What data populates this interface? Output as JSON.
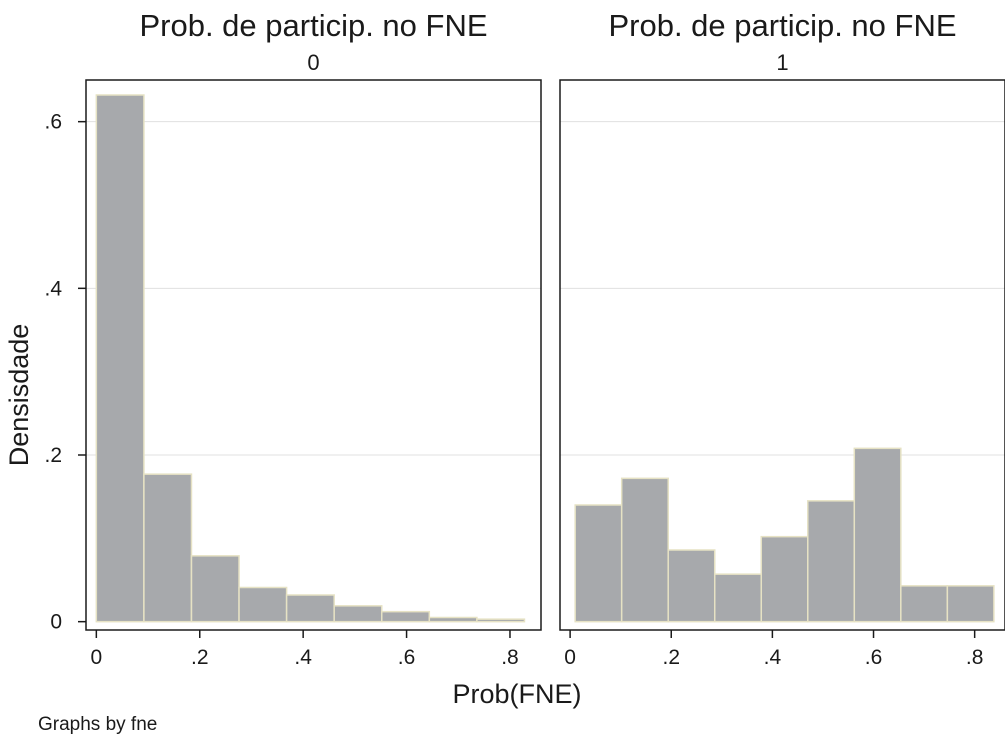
{
  "chart_data": {
    "type": "bar",
    "subtype": "histogram",
    "xlabel": "Prob(FNE)",
    "ylabel": "Densisdade",
    "note": "Graphs by fne",
    "grid": true,
    "legend": "none",
    "colors": {
      "bar_fill": "#a7a9ac",
      "bar_stroke": "#e6e2c4",
      "frame": "#1a1a1a",
      "grid": "#e0e0e0",
      "text": "#1a1a1a"
    },
    "x_ticks": [
      0,
      0.2,
      0.4,
      0.6,
      0.8
    ],
    "x_tick_labels": [
      "0",
      ".2",
      ".4",
      ".6",
      ".8"
    ],
    "y_ticks": [
      0,
      0.2,
      0.4,
      0.6
    ],
    "y_tick_labels": [
      "0",
      ".2",
      ".4",
      ".6"
    ],
    "xlim": [
      -0.02,
      0.86
    ],
    "ylim": [
      -0.01,
      0.65
    ],
    "panels": [
      {
        "title": "Prob. de particip. no FNE",
        "subtitle": "0",
        "bin_edges": [
          0,
          0.092,
          0.184,
          0.276,
          0.368,
          0.46,
          0.552,
          0.644,
          0.736,
          0.828
        ],
        "values": [
          0.632,
          0.177,
          0.079,
          0.041,
          0.032,
          0.019,
          0.012,
          0.005,
          0.003
        ]
      },
      {
        "title": "Prob. de particip. no FNE",
        "subtitle": "1",
        "bin_edges": [
          0.01,
          0.102,
          0.194,
          0.286,
          0.378,
          0.47,
          0.562,
          0.654,
          0.746,
          0.838
        ],
        "values": [
          0.14,
          0.172,
          0.086,
          0.057,
          0.102,
          0.145,
          0.208,
          0.043,
          0.043
        ]
      }
    ]
  }
}
